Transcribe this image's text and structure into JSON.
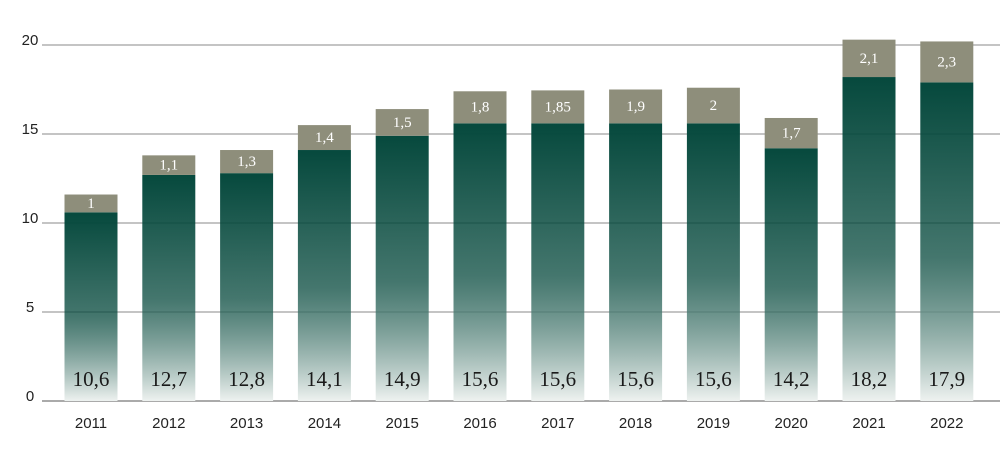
{
  "chart_data": {
    "type": "stacked-bar",
    "categories": [
      "2011",
      "2012",
      "2013",
      "2014",
      "2015",
      "2016",
      "2017",
      "2018",
      "2019",
      "2020",
      "2021",
      "2022"
    ],
    "series": [
      {
        "color": "#06493d",
        "values": [
          10.6,
          12.7,
          12.8,
          14.1,
          14.9,
          15.6,
          15.6,
          15.6,
          15.6,
          14.2,
          18.2,
          17.9
        ],
        "value_labels": [
          "10,6",
          "12,7",
          "12,8",
          "14,1",
          "14,9",
          "15,6",
          "15,6",
          "15,6",
          "15,6",
          "14,2",
          "18,2",
          "17,9"
        ]
      },
      {
        "color": "#8e8e7b",
        "values": [
          1,
          1.1,
          1.3,
          1.4,
          1.5,
          1.8,
          1.85,
          1.9,
          2,
          1.7,
          2.1,
          2.3
        ],
        "value_labels": [
          "1",
          "1,1",
          "1,3",
          "1,4",
          "1,5",
          "1,8",
          "1,85",
          "1,9",
          "2",
          "1,7",
          "2,1",
          "2,3"
        ]
      }
    ],
    "ylim": [
      0,
      20
    ],
    "yticks": [
      0,
      5,
      10,
      15,
      20
    ],
    "grid": true
  }
}
